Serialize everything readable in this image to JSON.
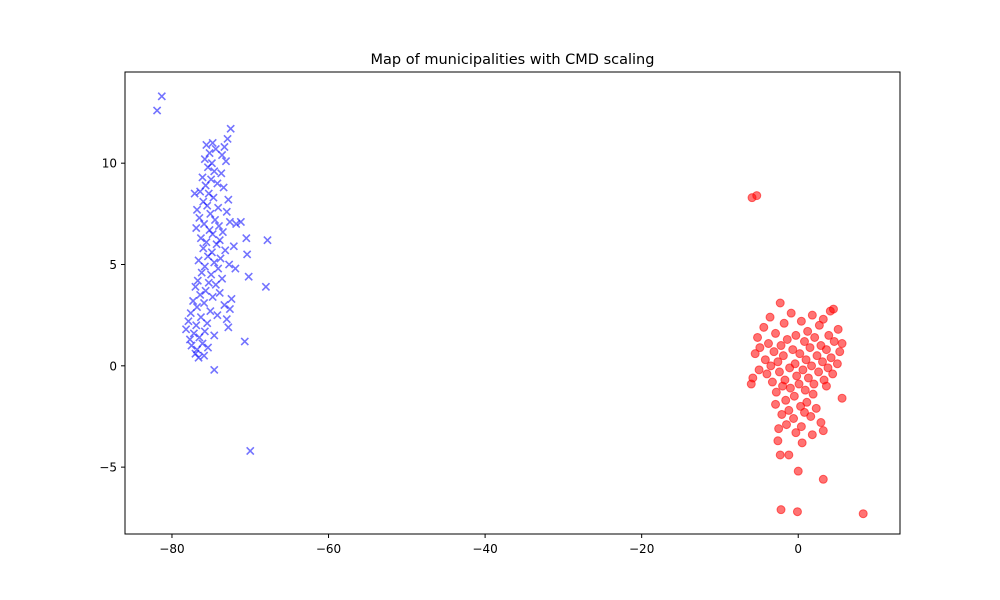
{
  "chart_data": {
    "type": "scatter",
    "title": "Map of municipalities with CMD scaling",
    "xlabel": "",
    "ylabel": "",
    "xlim": [
      -86,
      13
    ],
    "ylim": [
      -8.3,
      14.5
    ],
    "x_ticks": [
      -80,
      -60,
      -40,
      -20,
      0
    ],
    "y_ticks": [
      -5,
      0,
      5,
      10
    ],
    "x_tick_labels": [
      "−80",
      "−60",
      "−40",
      "−20",
      "0"
    ],
    "y_tick_labels": [
      "−5",
      "0",
      "5",
      "10"
    ],
    "grid": false,
    "legend": "none",
    "series": [
      {
        "marker": "x",
        "color": "#0000ff",
        "alpha": 0.55,
        "points": [
          [
            -81.3,
            13.3
          ],
          [
            -81.9,
            12.6
          ],
          [
            -72.5,
            11.7
          ],
          [
            -72.9,
            11.2
          ],
          [
            -74.8,
            11.0
          ],
          [
            -75.6,
            10.9
          ],
          [
            -73.3,
            10.8
          ],
          [
            -74.4,
            10.7
          ],
          [
            -75.2,
            10.5
          ],
          [
            -73.6,
            10.4
          ],
          [
            -75.8,
            10.2
          ],
          [
            -74.9,
            10.0
          ],
          [
            -73.1,
            10.1
          ],
          [
            -75.4,
            9.8
          ],
          [
            -74.6,
            9.6
          ],
          [
            -73.7,
            9.5
          ],
          [
            -76.1,
            9.3
          ],
          [
            -75.0,
            9.2
          ],
          [
            -74.2,
            9.0
          ],
          [
            -75.7,
            8.9
          ],
          [
            -73.4,
            8.8
          ],
          [
            -76.4,
            8.6
          ],
          [
            -75.3,
            8.5
          ],
          [
            -77.1,
            8.5
          ],
          [
            -74.7,
            8.3
          ],
          [
            -72.8,
            8.2
          ],
          [
            -76.0,
            8.1
          ],
          [
            -75.5,
            7.9
          ],
          [
            -74.1,
            7.8
          ],
          [
            -76.8,
            7.7
          ],
          [
            -73.0,
            7.6
          ],
          [
            -75.1,
            7.5
          ],
          [
            -76.5,
            7.3
          ],
          [
            -74.5,
            7.2
          ],
          [
            -72.6,
            7.1
          ],
          [
            -71.8,
            7.0
          ],
          [
            -71.2,
            7.1
          ],
          [
            -75.9,
            7.0
          ],
          [
            -74.0,
            6.9
          ],
          [
            -76.9,
            6.8
          ],
          [
            -75.2,
            6.7
          ],
          [
            -73.5,
            6.6
          ],
          [
            -74.8,
            6.5
          ],
          [
            -76.3,
            6.3
          ],
          [
            -70.5,
            6.3
          ],
          [
            -73.9,
            6.2
          ],
          [
            -75.6,
            6.1
          ],
          [
            -67.8,
            6.2
          ],
          [
            -74.3,
            6.0
          ],
          [
            -72.1,
            5.9
          ],
          [
            -76.0,
            5.8
          ],
          [
            -73.2,
            5.7
          ],
          [
            -74.9,
            5.6
          ],
          [
            -70.4,
            5.5
          ],
          [
            -75.4,
            5.4
          ],
          [
            -73.8,
            5.3
          ],
          [
            -76.6,
            5.2
          ],
          [
            -74.6,
            5.1
          ],
          [
            -72.7,
            5.0
          ],
          [
            -75.8,
            4.9
          ],
          [
            -74.1,
            4.8
          ],
          [
            -71.9,
            4.8
          ],
          [
            -76.2,
            4.6
          ],
          [
            -75.0,
            4.5
          ],
          [
            -70.2,
            4.4
          ],
          [
            -73.6,
            4.3
          ],
          [
            -76.7,
            4.2
          ],
          [
            -75.3,
            4.1
          ],
          [
            -74.4,
            4.0
          ],
          [
            -77.0,
            3.9
          ],
          [
            -68.0,
            3.9
          ],
          [
            -75.7,
            3.7
          ],
          [
            -73.9,
            3.6
          ],
          [
            -76.4,
            3.5
          ],
          [
            -74.8,
            3.4
          ],
          [
            -72.4,
            3.3
          ],
          [
            -77.3,
            3.2
          ],
          [
            -75.9,
            3.1
          ],
          [
            -73.3,
            3.0
          ],
          [
            -76.8,
            2.9
          ],
          [
            -72.6,
            2.8
          ],
          [
            -75.1,
            2.7
          ],
          [
            -77.6,
            2.6
          ],
          [
            -74.2,
            2.5
          ],
          [
            -76.3,
            2.4
          ],
          [
            -73.0,
            2.3
          ],
          [
            -77.9,
            2.2
          ],
          [
            -75.5,
            2.1
          ],
          [
            -76.9,
            2.0
          ],
          [
            -72.8,
            1.9
          ],
          [
            -78.2,
            1.8
          ],
          [
            -75.8,
            1.7
          ],
          [
            -77.2,
            1.6
          ],
          [
            -74.6,
            1.5
          ],
          [
            -76.5,
            1.4
          ],
          [
            -77.7,
            1.3
          ],
          [
            -70.7,
            1.2
          ],
          [
            -76.1,
            1.1
          ],
          [
            -77.5,
            1.0
          ],
          [
            -75.4,
            0.9
          ],
          [
            -76.8,
            0.8
          ],
          [
            -77.0,
            0.6
          ],
          [
            -75.9,
            0.5
          ],
          [
            -76.6,
            0.4
          ],
          [
            -74.6,
            -0.2
          ],
          [
            -70.0,
            -4.2
          ]
        ]
      },
      {
        "marker": "o",
        "color": "#ff0000",
        "alpha": 0.55,
        "points": [
          [
            -5.3,
            8.4
          ],
          [
            -5.9,
            8.3
          ],
          [
            -2.3,
            3.1
          ],
          [
            4.5,
            2.8
          ],
          [
            4.1,
            2.7
          ],
          [
            -0.9,
            2.6
          ],
          [
            1.8,
            2.5
          ],
          [
            -3.6,
            2.4
          ],
          [
            3.2,
            2.3
          ],
          [
            0.4,
            2.2
          ],
          [
            -1.8,
            2.1
          ],
          [
            2.7,
            2.0
          ],
          [
            -4.4,
            1.9
          ],
          [
            5.1,
            1.8
          ],
          [
            1.2,
            1.7
          ],
          [
            -2.9,
            1.6
          ],
          [
            3.9,
            1.5
          ],
          [
            -0.3,
            1.5
          ],
          [
            -5.2,
            1.4
          ],
          [
            2.1,
            1.4
          ],
          [
            -1.4,
            1.3
          ],
          [
            4.6,
            1.2
          ],
          [
            0.8,
            1.2
          ],
          [
            -3.8,
            1.1
          ],
          [
            5.6,
            1.1
          ],
          [
            -2.2,
            1.0
          ],
          [
            2.9,
            1.0
          ],
          [
            -4.9,
            0.9
          ],
          [
            1.5,
            0.9
          ],
          [
            -0.7,
            0.8
          ],
          [
            3.6,
            0.8
          ],
          [
            -3.1,
            0.7
          ],
          [
            5.3,
            0.7
          ],
          [
            0.2,
            0.6
          ],
          [
            -5.5,
            0.6
          ],
          [
            2.4,
            0.5
          ],
          [
            -1.9,
            0.5
          ],
          [
            4.2,
            0.4
          ],
          [
            -4.2,
            0.3
          ],
          [
            1.0,
            0.3
          ],
          [
            -2.6,
            0.2
          ],
          [
            3.1,
            0.2
          ],
          [
            -0.4,
            0.1
          ],
          [
            5.0,
            0.1
          ],
          [
            -3.5,
            0.0
          ],
          [
            1.7,
            0.0
          ],
          [
            -1.1,
            -0.1
          ],
          [
            3.8,
            -0.1
          ],
          [
            -5.0,
            -0.2
          ],
          [
            0.6,
            -0.2
          ],
          [
            -2.4,
            -0.3
          ],
          [
            2.6,
            -0.3
          ],
          [
            -4.0,
            -0.4
          ],
          [
            4.4,
            -0.4
          ],
          [
            -0.2,
            -0.5
          ],
          [
            -5.8,
            -0.6
          ],
          [
            1.3,
            -0.6
          ],
          [
            -1.7,
            -0.7
          ],
          [
            3.3,
            -0.7
          ],
          [
            -3.3,
            -0.8
          ],
          [
            0.1,
            -0.9
          ],
          [
            2.0,
            -0.9
          ],
          [
            -2.0,
            -1.0
          ],
          [
            -6.0,
            -0.9
          ],
          [
            3.6,
            -1.0
          ],
          [
            -1.0,
            -1.1
          ],
          [
            0.9,
            -1.2
          ],
          [
            -2.8,
            -1.3
          ],
          [
            1.9,
            -1.4
          ],
          [
            -0.5,
            -1.5
          ],
          [
            5.6,
            -1.6
          ],
          [
            -1.6,
            -1.7
          ],
          [
            1.1,
            -1.8
          ],
          [
            -2.9,
            -1.9
          ],
          [
            0.3,
            -2.0
          ],
          [
            2.3,
            -2.1
          ],
          [
            -1.2,
            -2.2
          ],
          [
            0.8,
            -2.3
          ],
          [
            -2.1,
            -2.4
          ],
          [
            1.6,
            -2.5
          ],
          [
            -0.6,
            -2.6
          ],
          [
            2.9,
            -2.8
          ],
          [
            -1.5,
            -2.9
          ],
          [
            0.4,
            -3.0
          ],
          [
            3.2,
            -3.2
          ],
          [
            -2.5,
            -3.1
          ],
          [
            -0.3,
            -3.3
          ],
          [
            1.8,
            -3.4
          ],
          [
            -2.6,
            -3.7
          ],
          [
            0.5,
            -3.8
          ],
          [
            -2.3,
            -4.4
          ],
          [
            -1.2,
            -4.4
          ],
          [
            0.0,
            -5.2
          ],
          [
            3.2,
            -5.6
          ],
          [
            -2.2,
            -7.1
          ],
          [
            -0.1,
            -7.2
          ],
          [
            8.3,
            -7.3
          ]
        ]
      }
    ]
  }
}
